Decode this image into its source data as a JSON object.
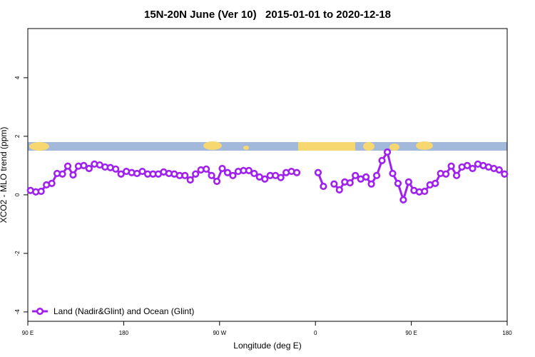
{
  "chart_data": {
    "type": "line",
    "title": "15N-20N June (Ver 10)   2015-01-01 to 2020-12-18",
    "xlabel": "Longitude (deg E)",
    "ylabel": "XCO2 - MLO trend (ppm)",
    "x": [
      92.5,
      97.5,
      102.5,
      107.5,
      112.5,
      117.5,
      122.5,
      127.5,
      132.5,
      137.5,
      142.5,
      147.5,
      152.5,
      157.5,
      162.5,
      167.5,
      172.5,
      177.5,
      182.5,
      187.5,
      192.5,
      197.5,
      202.5,
      207.5,
      212.5,
      217.5,
      222.5,
      227.5,
      232.5,
      237.5,
      242.5,
      247.5,
      252.5,
      257.5,
      262.5,
      267.5,
      272.5,
      277.5,
      282.5,
      287.5,
      292.5,
      297.5,
      302.5,
      307.5,
      312.5,
      317.5,
      322.5,
      327.5,
      332.5,
      337.5,
      342.5,
      347.5,
      352.5,
      357.5,
      362.5,
      367.5,
      372.5,
      377.5,
      382.5,
      387.5,
      392.5,
      397.5,
      402.5,
      407.5,
      412.5,
      417.5,
      422.5,
      427.5,
      432.5,
      437.5,
      442.5,
      447.5,
      452.5,
      457.5,
      462.5,
      467.5,
      472.5,
      477.5,
      482.5,
      487.5,
      492.5,
      497.5,
      502.5,
      507.5,
      512.5,
      517.5,
      522.5,
      527.5,
      532.5,
      537.5
    ],
    "series": [
      {
        "name": "Land (Nadir&Glint) and Ocean (Glint)",
        "color": "#a020f0",
        "values": [
          0.15,
          0.1,
          0.12,
          0.34,
          0.39,
          0.73,
          0.71,
          0.98,
          0.68,
          0.98,
          1.0,
          0.9,
          1.05,
          1.02,
          0.95,
          0.93,
          0.88,
          0.71,
          0.8,
          0.76,
          0.73,
          0.8,
          0.71,
          0.71,
          0.71,
          0.78,
          0.73,
          0.71,
          0.66,
          0.66,
          0.51,
          0.71,
          0.85,
          0.88,
          0.66,
          0.46,
          0.9,
          0.76,
          0.66,
          0.8,
          0.83,
          0.83,
          0.73,
          0.61,
          0.54,
          0.66,
          0.66,
          0.59,
          0.76,
          0.8,
          0.76,
          null,
          null,
          null,
          0.76,
          0.29,
          null,
          0.37,
          0.17,
          0.44,
          0.41,
          0.66,
          0.54,
          0.61,
          0.37,
          0.66,
          1.17,
          1.46,
          0.73,
          0.39,
          -0.17,
          0.44,
          0.15,
          0.1,
          0.12,
          0.34,
          0.39,
          0.73,
          0.71,
          0.98,
          0.66,
          0.95,
          1.0,
          0.9,
          1.05,
          1.0,
          0.95,
          0.9,
          0.85,
          0.71
        ]
      }
    ],
    "xlim": [
      90,
      540
    ],
    "xticks": [
      {
        "value": 90,
        "label": "90 E"
      },
      180,
      {
        "value": 270,
        "label": "90 W"
      },
      {
        "value": 360,
        "label": "0"
      },
      {
        "value": 450,
        "label": "90 E"
      },
      {
        "value": 540,
        "label": "180"
      }
    ],
    "ylim": [
      -4.32,
      5.68
    ],
    "yticks": [
      -4,
      -2,
      0,
      2,
      4
    ],
    "legend": "bottom-left"
  }
}
